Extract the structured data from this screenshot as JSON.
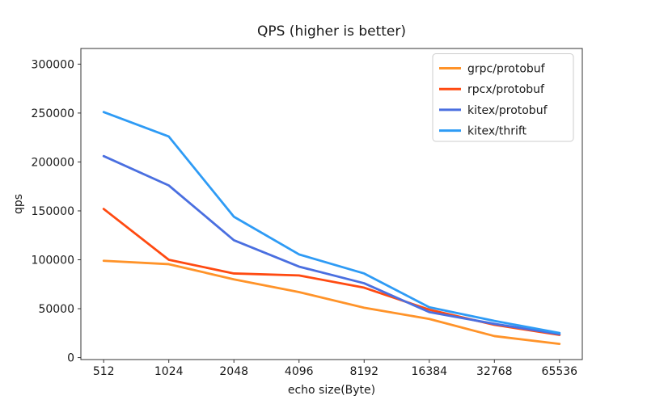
{
  "figure": {
    "title": "QPS (higher is better)",
    "xlabel": "echo size(Byte)",
    "ylabel": "qps"
  },
  "chart_data": {
    "type": "line",
    "title": "QPS (higher is better)",
    "xlabel": "echo size(Byte)",
    "ylabel": "qps",
    "categories": [
      "512",
      "1024",
      "2048",
      "4096",
      "8192",
      "16384",
      "32768",
      "65536"
    ],
    "series": [
      {
        "name": "grpc/protobuf",
        "color": "#ff9329",
        "values": [
          99000,
          95500,
          80000,
          67000,
          51000,
          39500,
          22000,
          14000
        ]
      },
      {
        "name": "rpcx/protobuf",
        "color": "#ff4a11",
        "values": [
          152000,
          100000,
          86000,
          84000,
          71500,
          49000,
          33500,
          23200
        ]
      },
      {
        "name": "kitex/protobuf",
        "color": "#4a6fe0",
        "values": [
          206000,
          176000,
          120000,
          93000,
          76000,
          46500,
          34500,
          24000
        ]
      },
      {
        "name": "kitex/thrift",
        "color": "#2e9bf5",
        "values": [
          251000,
          226000,
          144000,
          105500,
          86000,
          51500,
          37500,
          25200
        ]
      }
    ],
    "y_ticks": [
      0,
      50000,
      100000,
      150000,
      200000,
      250000,
      300000
    ],
    "ylim": [
      -2000,
      316000
    ],
    "grid": false,
    "legend_position": "upper right"
  }
}
